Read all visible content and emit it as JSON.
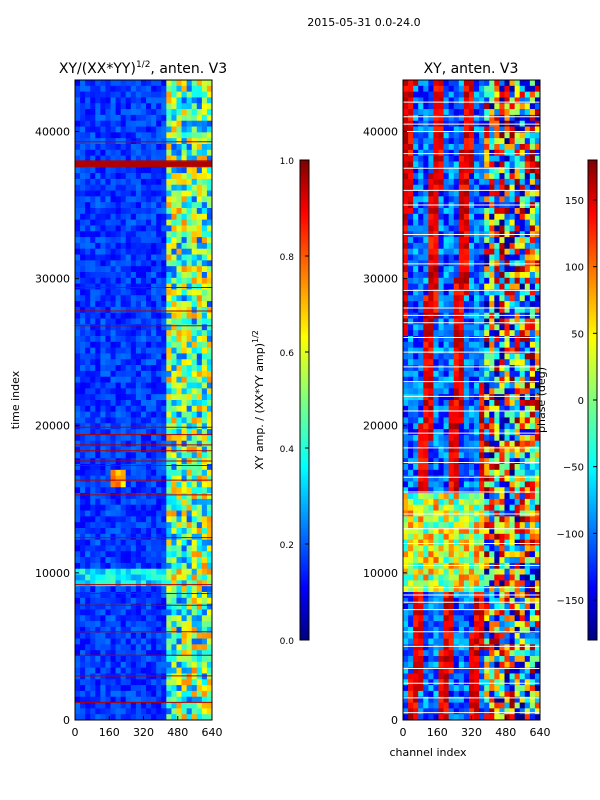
{
  "suptitle": "2015-05-31 0.0-24.0",
  "colors": {
    "jet": [
      "#00007f",
      "#0000ff",
      "#007fff",
      "#00ffff",
      "#7fff7f",
      "#ffff00",
      "#ff7f00",
      "#ff0000",
      "#7f0000"
    ],
    "flag_line_amp": "#b00000",
    "flag_line_phase": "#ffffff"
  },
  "chart_data": [
    {
      "type": "heatmap",
      "title": "XY/(XX*YY)^1/2, anten. V3",
      "title_base": "XY/(XX*YY)",
      "title_sup": "1/2",
      "title_tail": ", anten. V3",
      "xlabel": "",
      "ylabel": "time index",
      "xlim": [
        0,
        640
      ],
      "ylim": [
        0,
        43500
      ],
      "xticks": [
        0,
        160,
        320,
        480,
        640
      ],
      "yticks": [
        0,
        10000,
        20000,
        30000,
        40000
      ],
      "colorbar": {
        "label": "XY amp. / (XX*YY amp)^1/2",
        "label_base": "XY amp. / (XX*YY amp)",
        "label_sup": "1/2",
        "range": [
          0.0,
          1.0
        ],
        "ticks": [
          0.0,
          0.2,
          0.4,
          0.6,
          0.8,
          1.0
        ],
        "tick_labels": [
          "0.0",
          "0.2",
          "0.4",
          "0.6",
          "0.8",
          "1.0"
        ]
      },
      "flagged_rows": [
        37800,
        37600,
        38000,
        39300,
        29400,
        27800,
        26800,
        19900,
        19400,
        18700,
        18300,
        17600,
        17300,
        16300,
        15300,
        12400,
        9200,
        8600,
        7800,
        6000,
        4400,
        3000,
        1200
      ],
      "grid": false
    },
    {
      "type": "heatmap",
      "title": "XY, anten. V3",
      "xlabel": "channel index",
      "ylabel": "",
      "xlim": [
        0,
        640
      ],
      "ylim": [
        0,
        43500
      ],
      "xticks": [
        0,
        160,
        320,
        480,
        640
      ],
      "yticks": [
        0,
        10000,
        20000,
        30000,
        40000
      ],
      "colorbar": {
        "label": "phase (deg)",
        "range": [
          -180,
          180
        ],
        "ticks": [
          -150,
          -100,
          -50,
          0,
          50,
          100,
          150
        ],
        "tick_labels": [
          "−150",
          "−100",
          "−50",
          "0",
          "50",
          "100",
          "150"
        ]
      },
      "flagged_rows": [
        42000,
        41000,
        40500,
        40000,
        38500,
        37500,
        36000,
        35000,
        33000,
        31000,
        29200,
        28000,
        27500,
        27000,
        26000,
        25000,
        24000,
        23000,
        22000,
        21000,
        19500,
        18500,
        17500,
        16500,
        15500,
        14000,
        13000,
        12000,
        10500,
        9000,
        8500,
        8000,
        7500,
        6000,
        5000,
        3500,
        2500,
        1500,
        500
      ],
      "grid": false
    }
  ]
}
